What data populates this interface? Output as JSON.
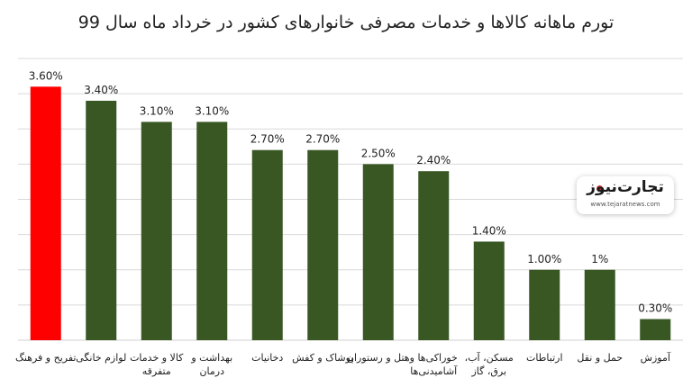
{
  "chart_data": {
    "type": "bar",
    "title": "تورم ماهانه کالاها و خدمات مصرفی خانوارهای کشور در خرداد ماه سال 99",
    "categories": [
      "تفریح و فرهنگ",
      "لوازم خانگی",
      "کالا و خدمات متفرقه",
      "بهداشت و درمان",
      "دخانیات",
      "پوشاک و کفش",
      "هتل و رستوران",
      "خوراکی‌ها و آشامیدنی‌ها",
      "مسکن، آب، برق، گاز",
      "ارتباطات",
      "حمل و نقل",
      "آموزش"
    ],
    "values": [
      3.6,
      3.4,
      3.1,
      3.1,
      2.7,
      2.7,
      2.5,
      2.4,
      1.4,
      1.0,
      1.0,
      0.3
    ],
    "data_labels": [
      "3.60%",
      "3.40%",
      "3.10%",
      "3.10%",
      "2.70%",
      "2.70%",
      "2.50%",
      "2.40%",
      "1.40%",
      "1.00%",
      "1%",
      "0.30%"
    ],
    "ylim": [
      0,
      4
    ],
    "grid": true,
    "colors": {
      "highlight": "#ff0000",
      "default": "#385723",
      "grid": "#d9d9d9"
    }
  },
  "logo": {
    "text": "تجارت‌نیوز",
    "sub": "www.tejaratnews.com"
  }
}
